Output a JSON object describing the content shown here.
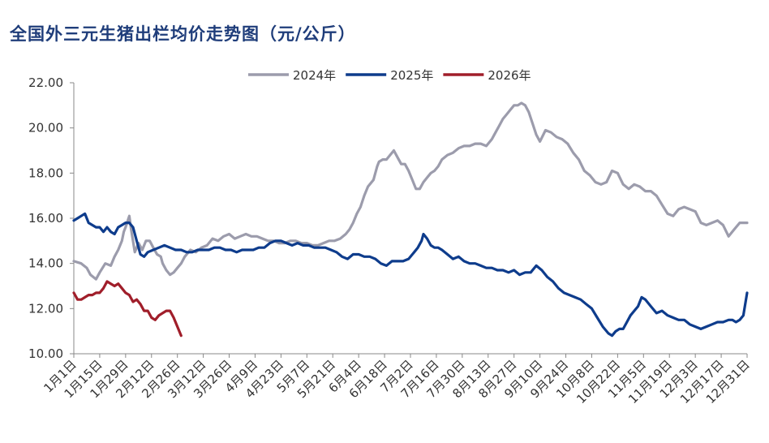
{
  "chart_data": {
    "type": "line",
    "title": "全国外三元生猪出栏均价走势图（元/公斤）",
    "xlabel": "",
    "ylabel": "",
    "ylim": [
      10,
      22
    ],
    "yticks": [
      "10.00",
      "12.00",
      "14.00",
      "16.00",
      "18.00",
      "20.00",
      "22.00"
    ],
    "ytick_values": [
      10,
      12,
      14,
      16,
      18,
      20,
      22
    ],
    "categories": [
      "1月1日",
      "1月15日",
      "1月29日",
      "2月12日",
      "2月26日",
      "3月12日",
      "3月26日",
      "4月9日",
      "4月23日",
      "5月7日",
      "5月21日",
      "6月4日",
      "6月18日",
      "7月2日",
      "7月16日",
      "7月30日",
      "8月13日",
      "8月27日",
      "9月10日",
      "9月24日",
      "10月8日",
      "10月22日",
      "11月5日",
      "11月19日",
      "12月3日",
      "12月17日",
      "12月31日"
    ],
    "x_unit": "day of year",
    "category_days": [
      1,
      15,
      29,
      43,
      57,
      71,
      85,
      99,
      113,
      127,
      141,
      155,
      169,
      183,
      197,
      211,
      225,
      239,
      253,
      267,
      281,
      295,
      309,
      323,
      337,
      351,
      365
    ],
    "legend": {
      "position": "top"
    },
    "series": [
      {
        "name": "2024年",
        "color": "#9c9cac",
        "x": [
          1,
          5,
          8,
          10,
          13,
          15,
          18,
          21,
          23,
          25,
          27,
          28,
          29,
          31,
          32,
          34,
          36,
          38,
          40,
          42,
          44,
          46,
          48,
          49,
          51,
          53,
          55,
          57,
          59,
          61,
          64,
          67,
          70,
          73,
          76,
          79,
          82,
          85,
          88,
          91,
          94,
          97,
          100,
          103,
          106,
          109,
          112,
          115,
          118,
          121,
          124,
          127,
          130,
          133,
          136,
          139,
          142,
          145,
          148,
          150,
          152,
          154,
          156,
          158,
          160,
          163,
          165,
          166,
          168,
          170,
          172,
          174,
          176,
          178,
          180,
          182,
          184,
          186,
          188,
          190,
          192,
          194,
          196,
          198,
          200,
          203,
          206,
          209,
          212,
          215,
          218,
          221,
          224,
          227,
          229,
          231,
          233,
          235,
          237,
          239,
          241,
          243,
          245,
          247,
          249,
          251,
          253,
          256,
          259,
          262,
          265,
          268,
          271,
          274,
          277,
          280,
          283,
          286,
          289,
          292,
          295,
          298,
          301,
          304,
          307,
          310,
          313,
          316,
          319,
          322,
          325,
          328,
          331,
          334,
          337,
          340,
          343,
          346,
          349,
          352,
          355,
          358,
          361,
          365
        ],
        "y": [
          14.1,
          14.0,
          13.8,
          13.5,
          13.3,
          13.6,
          14.0,
          13.9,
          14.3,
          14.6,
          15.0,
          15.4,
          15.6,
          16.1,
          15.5,
          14.5,
          14.9,
          14.6,
          15.0,
          15.0,
          14.7,
          14.4,
          14.3,
          14.0,
          13.7,
          13.5,
          13.6,
          13.8,
          14.0,
          14.3,
          14.6,
          14.5,
          14.7,
          14.8,
          15.1,
          15.0,
          15.2,
          15.3,
          15.1,
          15.2,
          15.3,
          15.2,
          15.2,
          15.1,
          15.0,
          15.0,
          14.9,
          14.9,
          15.0,
          15.0,
          14.9,
          14.9,
          14.8,
          14.8,
          14.9,
          15.0,
          15.0,
          15.1,
          15.3,
          15.5,
          15.8,
          16.2,
          16.5,
          17.0,
          17.4,
          17.7,
          18.3,
          18.5,
          18.6,
          18.6,
          18.8,
          19.0,
          18.7,
          18.4,
          18.4,
          18.1,
          17.7,
          17.3,
          17.3,
          17.6,
          17.8,
          18.0,
          18.1,
          18.3,
          18.6,
          18.8,
          18.9,
          19.1,
          19.2,
          19.2,
          19.3,
          19.3,
          19.2,
          19.5,
          19.8,
          20.1,
          20.4,
          20.6,
          20.8,
          21.0,
          21.0,
          21.1,
          21.0,
          20.7,
          20.2,
          19.7,
          19.4,
          19.9,
          19.8,
          19.6,
          19.5,
          19.3,
          18.9,
          18.6,
          18.1,
          17.9,
          17.6,
          17.5,
          17.6,
          18.1,
          18.0,
          17.5,
          17.3,
          17.5,
          17.4,
          17.2,
          17.2,
          17.0,
          16.6,
          16.2,
          16.1,
          16.4,
          16.5,
          16.4,
          16.3,
          15.8,
          15.7,
          15.8,
          15.9,
          15.7,
          15.2,
          15.5,
          15.8,
          15.8
        ]
      },
      {
        "name": "2025年",
        "color": "#0e3c8c",
        "x": [
          1,
          3,
          5,
          7,
          9,
          11,
          13,
          15,
          17,
          19,
          21,
          23,
          25,
          27,
          29,
          31,
          33,
          35,
          37,
          39,
          41,
          44,
          47,
          50,
          53,
          56,
          59,
          62,
          65,
          68,
          71,
          74,
          77,
          80,
          83,
          86,
          89,
          92,
          95,
          98,
          101,
          104,
          107,
          110,
          113,
          116,
          119,
          122,
          125,
          128,
          131,
          134,
          137,
          140,
          143,
          146,
          149,
          152,
          155,
          158,
          161,
          164,
          167,
          170,
          173,
          176,
          179,
          182,
          185,
          187,
          189,
          190,
          192,
          194,
          196,
          198,
          200,
          203,
          206,
          209,
          212,
          215,
          218,
          221,
          224,
          227,
          230,
          233,
          236,
          239,
          242,
          245,
          248,
          251,
          254,
          257,
          260,
          263,
          266,
          269,
          272,
          275,
          278,
          281,
          284,
          287,
          290,
          292,
          294,
          296,
          298,
          300,
          302,
          304,
          306,
          308,
          310,
          313,
          316,
          319,
          322,
          325,
          328,
          331,
          334,
          337,
          340,
          343,
          346,
          349,
          352,
          355,
          357,
          359,
          361,
          363,
          365
        ],
        "y": [
          15.9,
          16.0,
          16.1,
          16.2,
          15.8,
          15.7,
          15.6,
          15.6,
          15.4,
          15.6,
          15.4,
          15.3,
          15.6,
          15.7,
          15.8,
          15.8,
          15.6,
          15.0,
          14.4,
          14.3,
          14.5,
          14.6,
          14.7,
          14.8,
          14.7,
          14.6,
          14.6,
          14.5,
          14.5,
          14.6,
          14.6,
          14.6,
          14.7,
          14.7,
          14.6,
          14.6,
          14.5,
          14.6,
          14.6,
          14.6,
          14.7,
          14.7,
          14.9,
          15.0,
          15.0,
          14.9,
          14.8,
          14.9,
          14.8,
          14.8,
          14.7,
          14.7,
          14.7,
          14.6,
          14.5,
          14.3,
          14.2,
          14.4,
          14.4,
          14.3,
          14.3,
          14.2,
          14.0,
          13.9,
          14.1,
          14.1,
          14.1,
          14.2,
          14.5,
          14.7,
          15.0,
          15.3,
          15.1,
          14.8,
          14.7,
          14.7,
          14.6,
          14.4,
          14.2,
          14.3,
          14.1,
          14.0,
          14.0,
          13.9,
          13.8,
          13.8,
          13.7,
          13.7,
          13.6,
          13.7,
          13.5,
          13.6,
          13.6,
          13.9,
          13.7,
          13.4,
          13.2,
          12.9,
          12.7,
          12.6,
          12.5,
          12.4,
          12.2,
          12.0,
          11.6,
          11.2,
          10.9,
          10.8,
          11.0,
          11.1,
          11.1,
          11.4,
          11.7,
          11.9,
          12.1,
          12.5,
          12.4,
          12.1,
          11.8,
          11.9,
          11.7,
          11.6,
          11.5,
          11.5,
          11.3,
          11.2,
          11.1,
          11.2,
          11.3,
          11.4,
          11.4,
          11.5,
          11.5,
          11.4,
          11.5,
          11.7,
          12.7
        ]
      },
      {
        "name": "2026年",
        "color": "#a01e2a",
        "x": [
          1,
          3,
          5,
          7,
          9,
          11,
          13,
          15,
          17,
          19,
          21,
          23,
          25,
          27,
          29,
          31,
          33,
          35,
          37,
          39,
          41,
          43,
          45,
          47,
          49,
          51,
          53,
          55,
          57,
          59
        ],
        "y": [
          12.7,
          12.4,
          12.4,
          12.5,
          12.6,
          12.6,
          12.7,
          12.7,
          12.9,
          13.2,
          13.1,
          13.0,
          13.1,
          12.9,
          12.7,
          12.6,
          12.3,
          12.4,
          12.2,
          11.9,
          11.9,
          11.6,
          11.5,
          11.7,
          11.8,
          11.9,
          11.9,
          11.6,
          11.2,
          10.8
        ]
      }
    ]
  }
}
